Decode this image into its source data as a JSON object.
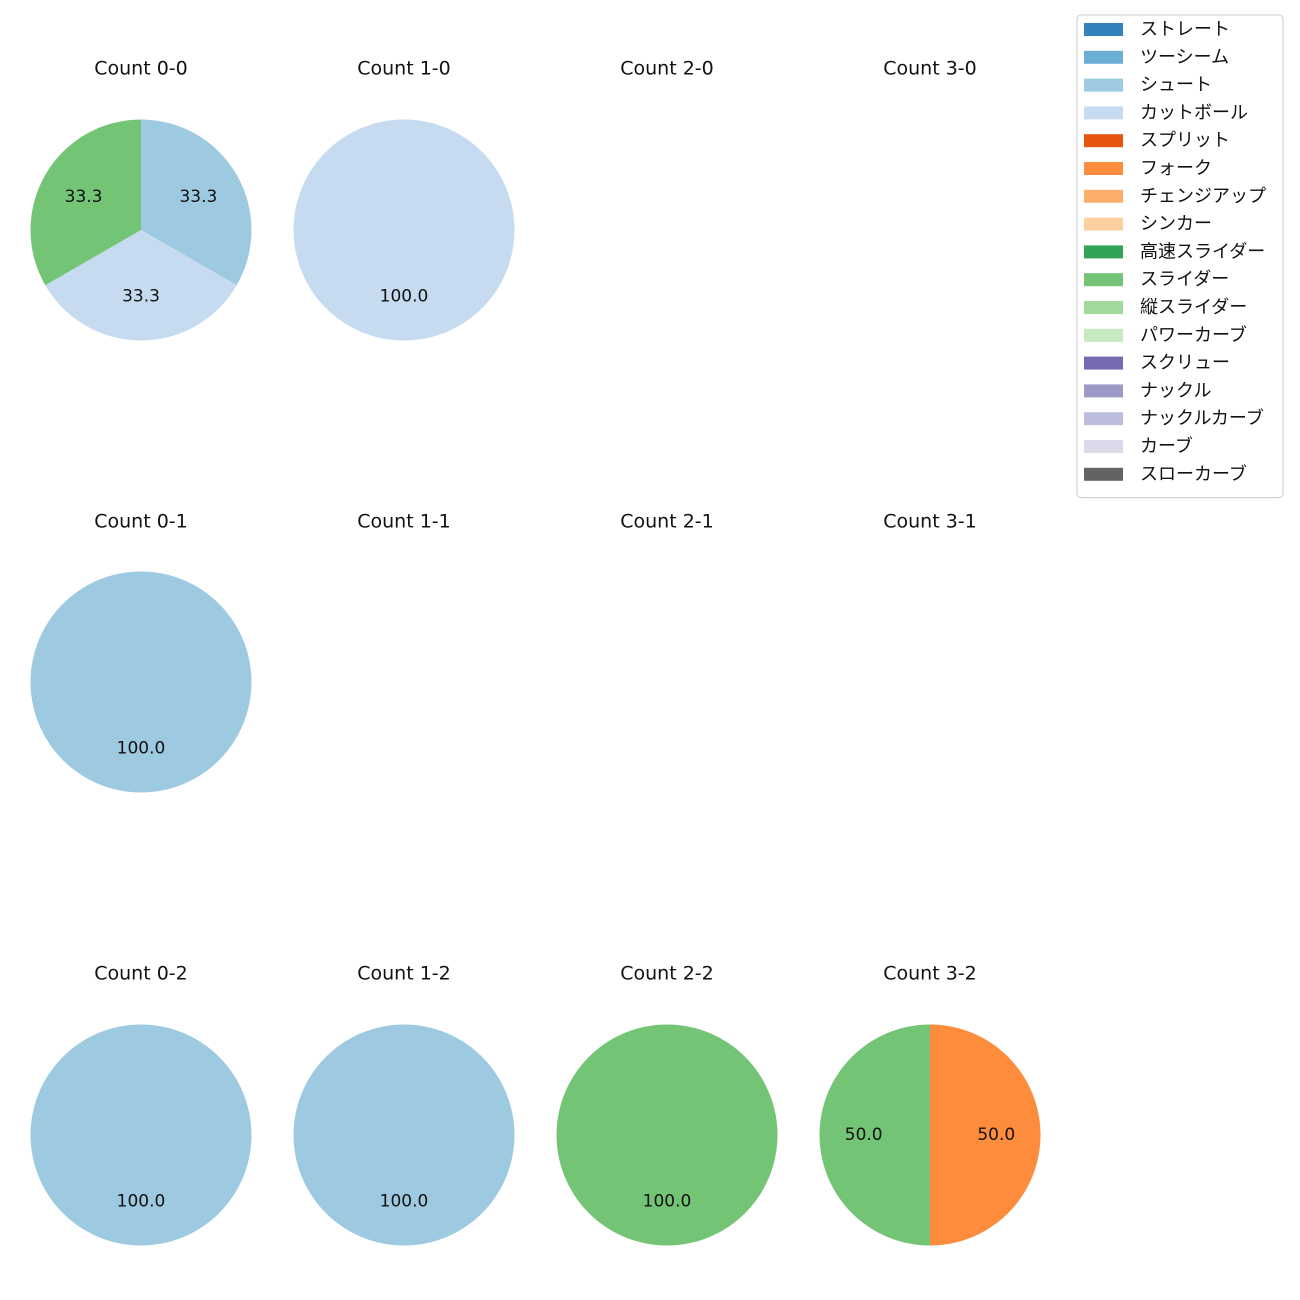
{
  "chart_data": {
    "type": "pie",
    "start_angle_deg": 90,
    "direction": "clockwise",
    "value_format": "%.1f",
    "legend": {
      "placement": "top-right",
      "entries": [
        {
          "name": "ストレート",
          "color": "#3182bd"
        },
        {
          "name": "ツーシーム",
          "color": "#6baed6"
        },
        {
          "name": "シュート",
          "color": "#9ecae1"
        },
        {
          "name": "カットボール",
          "color": "#c6dbef"
        },
        {
          "name": "スプリット",
          "color": "#e6550d"
        },
        {
          "name": "フォーク",
          "color": "#fd8d3c"
        },
        {
          "name": "チェンジアップ",
          "color": "#fdae6b"
        },
        {
          "name": "シンカー",
          "color": "#fdd0a2"
        },
        {
          "name": "高速スライダー",
          "color": "#31a354"
        },
        {
          "name": "スライダー",
          "color": "#74c476"
        },
        {
          "name": "縦スライダー",
          "color": "#a1d99b"
        },
        {
          "name": "パワーカーブ",
          "color": "#c7e9c0"
        },
        {
          "name": "スクリュー",
          "color": "#756bb1"
        },
        {
          "name": "ナックル",
          "color": "#9e9ac8"
        },
        {
          "name": "ナックルカーブ",
          "color": "#bcbddc"
        },
        {
          "name": "カーブ",
          "color": "#dadaeb"
        },
        {
          "name": "スローカーブ",
          "color": "#636363"
        }
      ]
    },
    "panels": [
      {
        "title": "Count 0-0",
        "slices": [
          {
            "pitch": "シュート",
            "value": 33.3
          },
          {
            "pitch": "カットボール",
            "value": 33.3
          },
          {
            "pitch": "スライダー",
            "value": 33.3
          }
        ]
      },
      {
        "title": "Count 1-0",
        "slices": [
          {
            "pitch": "カットボール",
            "value": 100.0
          }
        ]
      },
      {
        "title": "Count 2-0",
        "slices": []
      },
      {
        "title": "Count 3-0",
        "slices": []
      },
      {
        "title": "Count 0-1",
        "slices": [
          {
            "pitch": "シュート",
            "value": 100.0
          }
        ]
      },
      {
        "title": "Count 1-1",
        "slices": []
      },
      {
        "title": "Count 2-1",
        "slices": []
      },
      {
        "title": "Count 3-1",
        "slices": []
      },
      {
        "title": "Count 0-2",
        "slices": [
          {
            "pitch": "シュート",
            "value": 100.0
          }
        ]
      },
      {
        "title": "Count 1-2",
        "slices": [
          {
            "pitch": "シュート",
            "value": 100.0
          }
        ]
      },
      {
        "title": "Count 2-2",
        "slices": [
          {
            "pitch": "スライダー",
            "value": 100.0
          }
        ]
      },
      {
        "title": "Count 3-2",
        "slices": [
          {
            "pitch": "フォーク",
            "value": 50.0
          },
          {
            "pitch": "スライダー",
            "value": 50.0
          }
        ]
      }
    ]
  }
}
